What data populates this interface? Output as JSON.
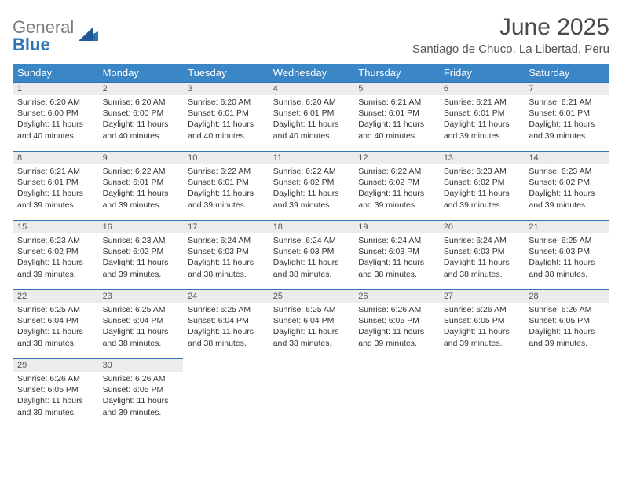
{
  "brand": {
    "name_gray": "General",
    "name_blue": "Blue",
    "mark_color": "#2e74b5"
  },
  "title": "June 2025",
  "subtitle": "Santiago de Chuco, La Libertad, Peru",
  "colors": {
    "header_bg": "#3b86c6",
    "header_text": "#ffffff",
    "daynum_bg": "#ececec",
    "daynum_border": "#2e74b5",
    "body_text": "#333333",
    "title_text": "#4a4a4a"
  },
  "weekdays": [
    "Sunday",
    "Monday",
    "Tuesday",
    "Wednesday",
    "Thursday",
    "Friday",
    "Saturday"
  ],
  "weeks": [
    [
      {
        "day": "1",
        "sunrise": "Sunrise: 6:20 AM",
        "sunset": "Sunset: 6:00 PM",
        "daylight1": "Daylight: 11 hours",
        "daylight2": "and 40 minutes."
      },
      {
        "day": "2",
        "sunrise": "Sunrise: 6:20 AM",
        "sunset": "Sunset: 6:00 PM",
        "daylight1": "Daylight: 11 hours",
        "daylight2": "and 40 minutes."
      },
      {
        "day": "3",
        "sunrise": "Sunrise: 6:20 AM",
        "sunset": "Sunset: 6:01 PM",
        "daylight1": "Daylight: 11 hours",
        "daylight2": "and 40 minutes."
      },
      {
        "day": "4",
        "sunrise": "Sunrise: 6:20 AM",
        "sunset": "Sunset: 6:01 PM",
        "daylight1": "Daylight: 11 hours",
        "daylight2": "and 40 minutes."
      },
      {
        "day": "5",
        "sunrise": "Sunrise: 6:21 AM",
        "sunset": "Sunset: 6:01 PM",
        "daylight1": "Daylight: 11 hours",
        "daylight2": "and 40 minutes."
      },
      {
        "day": "6",
        "sunrise": "Sunrise: 6:21 AM",
        "sunset": "Sunset: 6:01 PM",
        "daylight1": "Daylight: 11 hours",
        "daylight2": "and 39 minutes."
      },
      {
        "day": "7",
        "sunrise": "Sunrise: 6:21 AM",
        "sunset": "Sunset: 6:01 PM",
        "daylight1": "Daylight: 11 hours",
        "daylight2": "and 39 minutes."
      }
    ],
    [
      {
        "day": "8",
        "sunrise": "Sunrise: 6:21 AM",
        "sunset": "Sunset: 6:01 PM",
        "daylight1": "Daylight: 11 hours",
        "daylight2": "and 39 minutes."
      },
      {
        "day": "9",
        "sunrise": "Sunrise: 6:22 AM",
        "sunset": "Sunset: 6:01 PM",
        "daylight1": "Daylight: 11 hours",
        "daylight2": "and 39 minutes."
      },
      {
        "day": "10",
        "sunrise": "Sunrise: 6:22 AM",
        "sunset": "Sunset: 6:01 PM",
        "daylight1": "Daylight: 11 hours",
        "daylight2": "and 39 minutes."
      },
      {
        "day": "11",
        "sunrise": "Sunrise: 6:22 AM",
        "sunset": "Sunset: 6:02 PM",
        "daylight1": "Daylight: 11 hours",
        "daylight2": "and 39 minutes."
      },
      {
        "day": "12",
        "sunrise": "Sunrise: 6:22 AM",
        "sunset": "Sunset: 6:02 PM",
        "daylight1": "Daylight: 11 hours",
        "daylight2": "and 39 minutes."
      },
      {
        "day": "13",
        "sunrise": "Sunrise: 6:23 AM",
        "sunset": "Sunset: 6:02 PM",
        "daylight1": "Daylight: 11 hours",
        "daylight2": "and 39 minutes."
      },
      {
        "day": "14",
        "sunrise": "Sunrise: 6:23 AM",
        "sunset": "Sunset: 6:02 PM",
        "daylight1": "Daylight: 11 hours",
        "daylight2": "and 39 minutes."
      }
    ],
    [
      {
        "day": "15",
        "sunrise": "Sunrise: 6:23 AM",
        "sunset": "Sunset: 6:02 PM",
        "daylight1": "Daylight: 11 hours",
        "daylight2": "and 39 minutes."
      },
      {
        "day": "16",
        "sunrise": "Sunrise: 6:23 AM",
        "sunset": "Sunset: 6:02 PM",
        "daylight1": "Daylight: 11 hours",
        "daylight2": "and 39 minutes."
      },
      {
        "day": "17",
        "sunrise": "Sunrise: 6:24 AM",
        "sunset": "Sunset: 6:03 PM",
        "daylight1": "Daylight: 11 hours",
        "daylight2": "and 38 minutes."
      },
      {
        "day": "18",
        "sunrise": "Sunrise: 6:24 AM",
        "sunset": "Sunset: 6:03 PM",
        "daylight1": "Daylight: 11 hours",
        "daylight2": "and 38 minutes."
      },
      {
        "day": "19",
        "sunrise": "Sunrise: 6:24 AM",
        "sunset": "Sunset: 6:03 PM",
        "daylight1": "Daylight: 11 hours",
        "daylight2": "and 38 minutes."
      },
      {
        "day": "20",
        "sunrise": "Sunrise: 6:24 AM",
        "sunset": "Sunset: 6:03 PM",
        "daylight1": "Daylight: 11 hours",
        "daylight2": "and 38 minutes."
      },
      {
        "day": "21",
        "sunrise": "Sunrise: 6:25 AM",
        "sunset": "Sunset: 6:03 PM",
        "daylight1": "Daylight: 11 hours",
        "daylight2": "and 38 minutes."
      }
    ],
    [
      {
        "day": "22",
        "sunrise": "Sunrise: 6:25 AM",
        "sunset": "Sunset: 6:04 PM",
        "daylight1": "Daylight: 11 hours",
        "daylight2": "and 38 minutes."
      },
      {
        "day": "23",
        "sunrise": "Sunrise: 6:25 AM",
        "sunset": "Sunset: 6:04 PM",
        "daylight1": "Daylight: 11 hours",
        "daylight2": "and 38 minutes."
      },
      {
        "day": "24",
        "sunrise": "Sunrise: 6:25 AM",
        "sunset": "Sunset: 6:04 PM",
        "daylight1": "Daylight: 11 hours",
        "daylight2": "and 38 minutes."
      },
      {
        "day": "25",
        "sunrise": "Sunrise: 6:25 AM",
        "sunset": "Sunset: 6:04 PM",
        "daylight1": "Daylight: 11 hours",
        "daylight2": "and 38 minutes."
      },
      {
        "day": "26",
        "sunrise": "Sunrise: 6:26 AM",
        "sunset": "Sunset: 6:05 PM",
        "daylight1": "Daylight: 11 hours",
        "daylight2": "and 39 minutes."
      },
      {
        "day": "27",
        "sunrise": "Sunrise: 6:26 AM",
        "sunset": "Sunset: 6:05 PM",
        "daylight1": "Daylight: 11 hours",
        "daylight2": "and 39 minutes."
      },
      {
        "day": "28",
        "sunrise": "Sunrise: 6:26 AM",
        "sunset": "Sunset: 6:05 PM",
        "daylight1": "Daylight: 11 hours",
        "daylight2": "and 39 minutes."
      }
    ],
    [
      {
        "day": "29",
        "sunrise": "Sunrise: 6:26 AM",
        "sunset": "Sunset: 6:05 PM",
        "daylight1": "Daylight: 11 hours",
        "daylight2": "and 39 minutes."
      },
      {
        "day": "30",
        "sunrise": "Sunrise: 6:26 AM",
        "sunset": "Sunset: 6:05 PM",
        "daylight1": "Daylight: 11 hours",
        "daylight2": "and 39 minutes."
      },
      null,
      null,
      null,
      null,
      null
    ]
  ]
}
